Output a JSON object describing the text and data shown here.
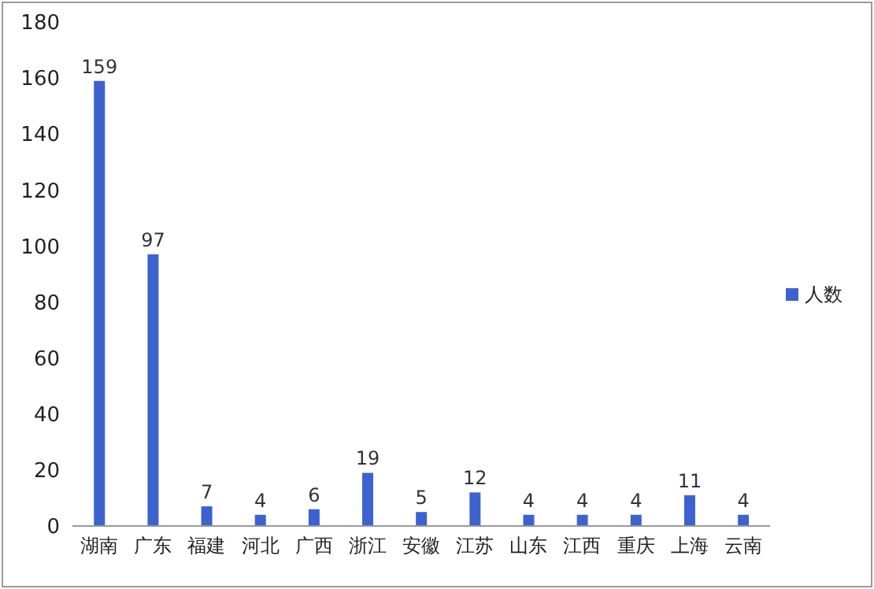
{
  "chart_data": {
    "type": "bar",
    "categories": [
      "湖南",
      "广东",
      "福建",
      "河北",
      "广西",
      "浙江",
      "安徽",
      "江苏",
      "山东",
      "江西",
      "重庆",
      "上海",
      "云南"
    ],
    "series": [
      {
        "name": "人数",
        "color": "#3c62d0",
        "values": [
          159,
          97,
          7,
          4,
          6,
          19,
          5,
          12,
          4,
          4,
          4,
          11,
          4
        ]
      }
    ],
    "ylim": [
      0,
      180
    ],
    "yticks": [
      0,
      20,
      40,
      60,
      80,
      100,
      120,
      140,
      160,
      180
    ],
    "grid": false,
    "legend": "right",
    "data_labels": true
  }
}
